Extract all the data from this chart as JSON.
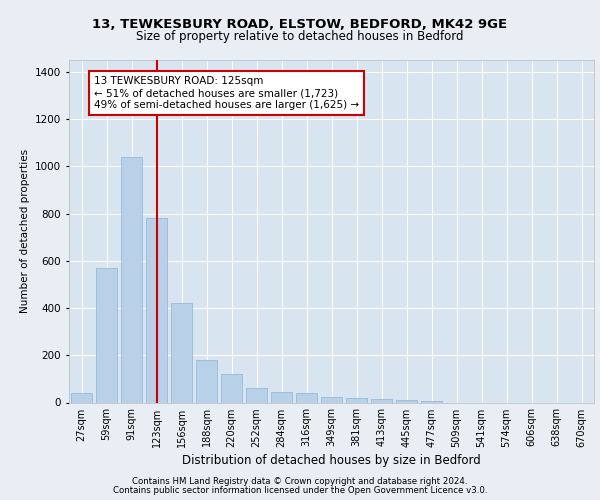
{
  "title1": "13, TEWKESBURY ROAD, ELSTOW, BEDFORD, MK42 9GE",
  "title2": "Size of property relative to detached houses in Bedford",
  "xlabel": "Distribution of detached houses by size in Bedford",
  "ylabel": "Number of detached properties",
  "categories": [
    "27sqm",
    "59sqm",
    "91sqm",
    "123sqm",
    "156sqm",
    "188sqm",
    "220sqm",
    "252sqm",
    "284sqm",
    "316sqm",
    "349sqm",
    "381sqm",
    "413sqm",
    "445sqm",
    "477sqm",
    "509sqm",
    "541sqm",
    "574sqm",
    "606sqm",
    "638sqm",
    "670sqm"
  ],
  "values": [
    40,
    570,
    1040,
    780,
    420,
    180,
    120,
    60,
    45,
    40,
    25,
    20,
    15,
    10,
    8,
    0,
    0,
    0,
    0,
    0,
    0
  ],
  "bar_color": "#b8d0e8",
  "bar_edge_color": "#8ab4d4",
  "vline_x_index": 3,
  "vline_color": "#cc0000",
  "annotation_title": "13 TEWKESBURY ROAD: 125sqm",
  "annotation_line1": "← 51% of detached houses are smaller (1,723)",
  "annotation_line2": "49% of semi-detached houses are larger (1,625) →",
  "annotation_box_color": "#ffffff",
  "annotation_box_edge": "#cc0000",
  "footer1": "Contains HM Land Registry data © Crown copyright and database right 2024.",
  "footer2": "Contains public sector information licensed under the Open Government Licence v3.0.",
  "ylim": [
    0,
    1450
  ],
  "yticks": [
    0,
    200,
    400,
    600,
    800,
    1000,
    1200,
    1400
  ],
  "bg_color": "#e8eef4",
  "plot_bg_color": "#d8e4f0",
  "title1_fontsize": 9.5,
  "title2_fontsize": 8.5,
  "xlabel_fontsize": 8.5,
  "ylabel_fontsize": 7.5,
  "tick_fontsize": 7,
  "footer_fontsize": 6.2,
  "annot_fontsize": 7.5
}
